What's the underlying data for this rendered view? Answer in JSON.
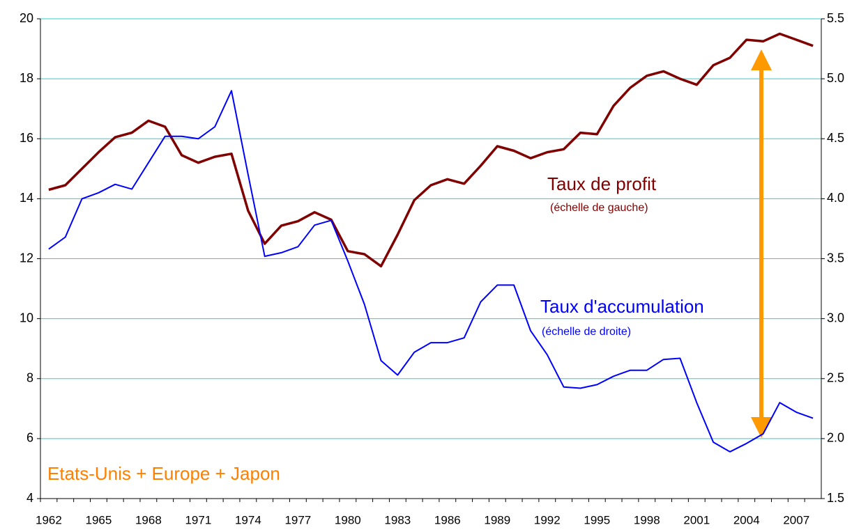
{
  "chart_data": {
    "type": "line",
    "categories": [
      "1962",
      null,
      null,
      "1965",
      null,
      null,
      "1968",
      null,
      null,
      "1971",
      null,
      null,
      "1974",
      null,
      null,
      "1977",
      null,
      null,
      "1980",
      null,
      null,
      "1983",
      null,
      null,
      "1986",
      null,
      null,
      "1989",
      null,
      null,
      "1992",
      null,
      null,
      "1995",
      null,
      null,
      "1998",
      null,
      null,
      "2001",
      null,
      null,
      "2004",
      null,
      null,
      "2007",
      null
    ],
    "series": [
      {
        "name": "Taux de profit",
        "color": "#800000",
        "axis": "y",
        "values": [
          14.3,
          14.45,
          15.0,
          15.55,
          16.05,
          16.2,
          16.6,
          16.4,
          15.45,
          15.2,
          15.4,
          15.5,
          13.6,
          12.5,
          13.1,
          13.25,
          13.55,
          13.3,
          12.25,
          12.15,
          11.75,
          12.8,
          13.95,
          14.45,
          14.65,
          14.5,
          15.1,
          15.75,
          15.6,
          15.35,
          15.55,
          15.65,
          16.2,
          16.15,
          17.1,
          17.7,
          18.1,
          18.25,
          18.0,
          17.8,
          18.45,
          18.7,
          19.3,
          19.25,
          19.5,
          19.3,
          19.1
        ]
      },
      {
        "name": "Taux d'accumulation",
        "color": "#0000ff",
        "axis": "y2",
        "values": [
          3.58,
          3.68,
          4.0,
          4.05,
          4.12,
          4.08,
          4.3,
          4.52,
          4.52,
          4.5,
          4.6,
          4.9,
          4.2,
          3.52,
          3.55,
          3.6,
          3.78,
          3.82,
          3.48,
          3.12,
          2.65,
          2.53,
          2.72,
          2.8,
          2.8,
          2.84,
          3.14,
          3.28,
          3.28,
          2.9,
          2.7,
          2.43,
          2.42,
          2.45,
          2.52,
          2.57,
          2.57,
          2.66,
          2.67,
          2.3,
          1.97,
          1.89,
          1.96,
          2.04,
          2.3,
          2.22,
          2.17
        ]
      }
    ],
    "ylim": [
      4,
      20
    ],
    "yticks": [
      4,
      6,
      8,
      10,
      12,
      14,
      16,
      18,
      20
    ],
    "y2lim": [
      1.5,
      5.5
    ],
    "y2ticks": [
      1.5,
      {
        "value": 2,
        "label": "2.0"
      },
      2.5,
      {
        "value": 3,
        "label": "3.0"
      },
      3.5,
      {
        "value": 4,
        "label": "4.0"
      },
      4.5,
      {
        "value": 5,
        "label": "5.0"
      },
      5.5
    ],
    "grid": true,
    "annotations": [
      "Taux de profit",
      "(échelle de gauche)",
      "Taux d'accumulation",
      "(échelle de droite)",
      "Etats-Unis + Europe + Japon"
    ]
  }
}
